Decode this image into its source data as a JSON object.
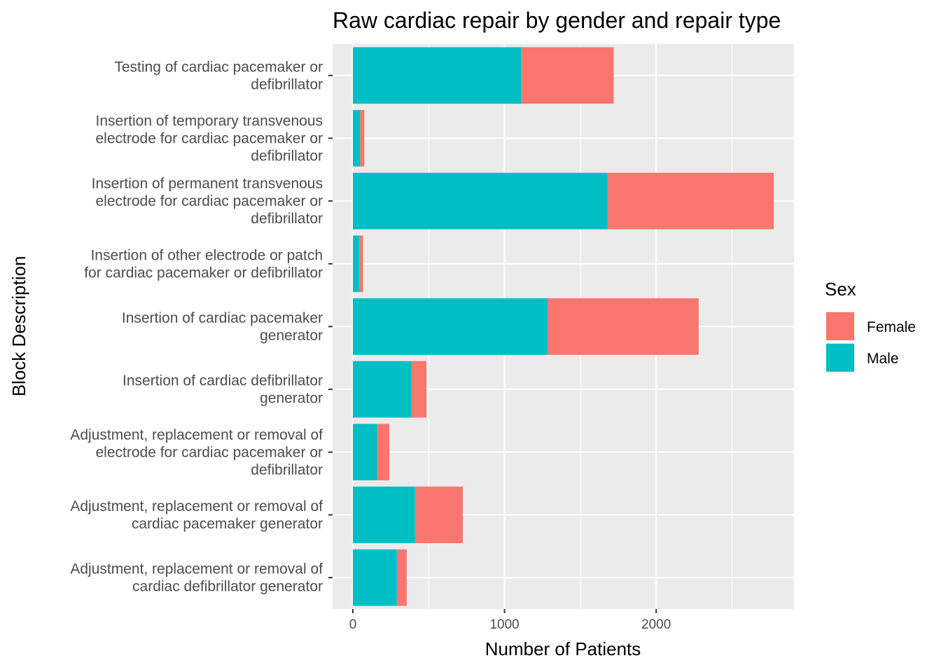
{
  "chart_data": {
    "type": "bar",
    "orientation": "horizontal",
    "stacked": true,
    "title": "Raw cardiac repair by gender and repair type",
    "xlabel": "Number of Patients",
    "ylabel": "Block Description",
    "xlim": [
      0,
      2900
    ],
    "xticks": [
      "0",
      "1000",
      "2000"
    ],
    "grid": true,
    "legend": {
      "title": "Sex",
      "position": "right",
      "entries": [
        "Female",
        "Male"
      ]
    },
    "categories": [
      [
        "Testing of cardiac pacemaker or",
        "defibrillator"
      ],
      [
        "Insertion of temporary transvenous",
        "electrode for cardiac pacemaker or",
        "defibrillator"
      ],
      [
        "Insertion of permanent transvenous",
        "electrode for cardiac pacemaker or",
        "defibrillator"
      ],
      [
        "Insertion of other electrode or patch",
        "for cardiac pacemaker or defibrillator"
      ],
      [
        "Insertion of cardiac pacemaker",
        "generator"
      ],
      [
        "Insertion of cardiac defibrillator",
        "generator"
      ],
      [
        "Adjustment, replacement or removal of",
        "electrode for cardiac pacemaker or",
        "defibrillator"
      ],
      [
        "Adjustment, replacement or removal of",
        "cardiac pacemaker generator"
      ],
      [
        "Adjustment, replacement or removal of",
        "cardiac defibrillator generator"
      ]
    ],
    "series": [
      {
        "name": "Male",
        "color": "#00BFC4",
        "values": [
          1110,
          48,
          1680,
          42,
          1285,
          385,
          160,
          410,
          290
        ]
      },
      {
        "name": "Female",
        "color": "#F8766D",
        "values": [
          610,
          27,
          1095,
          25,
          995,
          100,
          80,
          315,
          65
        ]
      }
    ]
  }
}
